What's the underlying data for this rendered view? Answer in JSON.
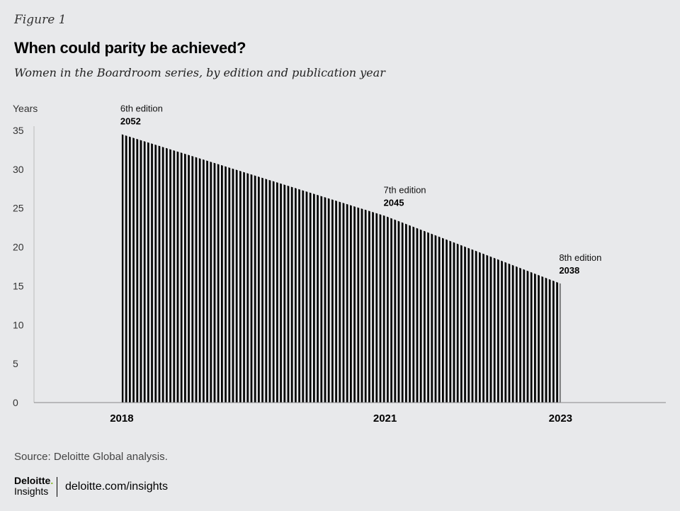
{
  "figure_label": "Figure 1",
  "title": "When could parity be achieved?",
  "subtitle": "Women in the Boardroom series, by edition and publication year",
  "chart_data": {
    "type": "area",
    "ylabel": "Years",
    "ylim": [
      0,
      35
    ],
    "yticks": [
      0,
      5,
      10,
      15,
      20,
      25,
      30,
      35
    ],
    "xlim": [
      2017,
      2024.2
    ],
    "x": [
      2018,
      2021,
      2023
    ],
    "y": [
      34.5,
      24,
      15.3
    ],
    "xtick_labels": [
      "2018",
      "2021",
      "2023"
    ],
    "annotations": [
      {
        "edition": "6th edition",
        "year": "2052"
      },
      {
        "edition": "7th edition",
        "year": "2045"
      },
      {
        "edition": "8th edition",
        "year": "2038"
      }
    ],
    "fill_pattern": "vertical-stripes",
    "colors": {
      "fill": "#000000",
      "background": "#e8e9eb",
      "axis": "#888888"
    }
  },
  "source": "Source: Deloitte Global analysis.",
  "footer": {
    "logo_main": "Deloitte",
    "logo_dot": ".",
    "logo_sub": "Insights",
    "site": "deloitte.com/insights"
  }
}
